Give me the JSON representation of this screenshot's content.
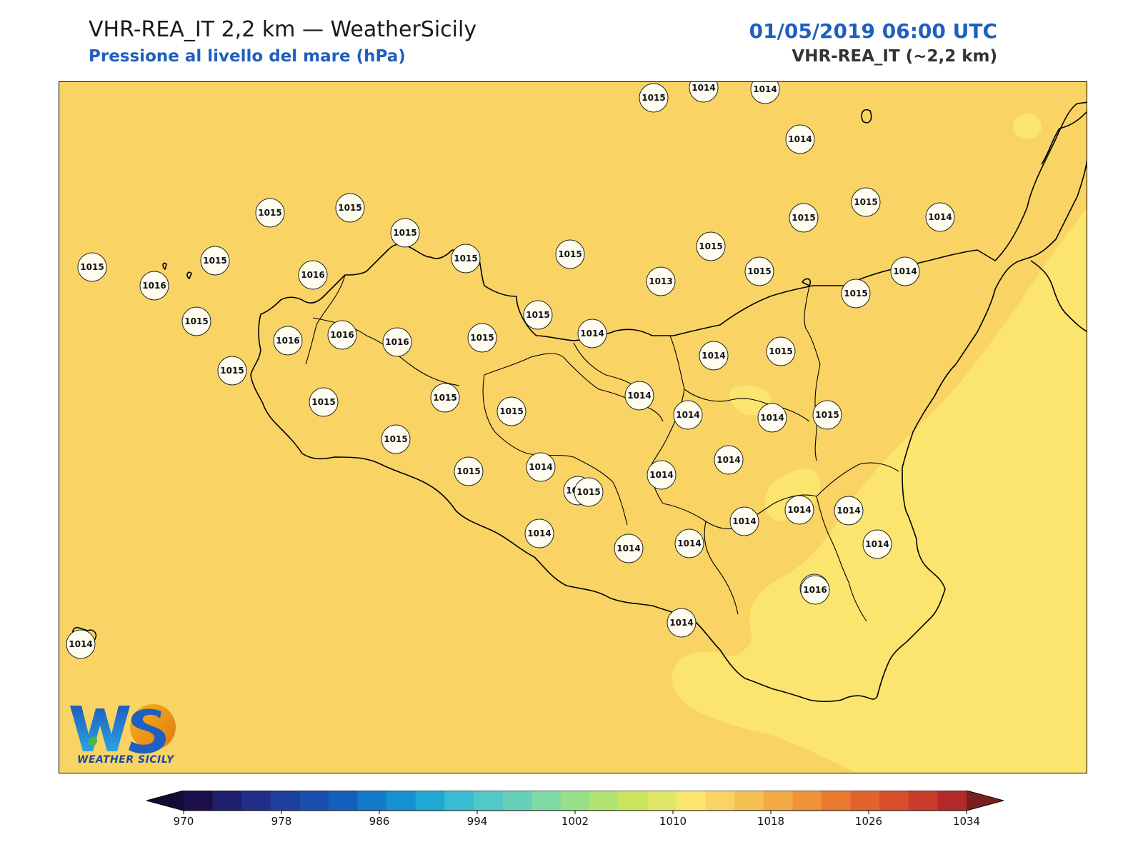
{
  "header": {
    "title": "VHR-REA_IT 2,2 km — WeatherSicily",
    "subtitle": "Pressione al livello del mare (hPa)",
    "datetime": "01/05/2019 06:00 UTC",
    "model": "VHR-REA_IT (~2,2 km)"
  },
  "logo": {
    "text": "WEATHER SICILY",
    "lettering": "WS"
  },
  "colors": {
    "field_base": "#f9d464",
    "field_light": "#fbe56e",
    "coast": "#000000",
    "marker_fill": "#fffdf0",
    "title_blue": "#1f5fbf"
  },
  "colorbar": {
    "min": 970,
    "max": 1034,
    "step": 4,
    "ticks": [
      "970",
      "978",
      "986",
      "994",
      "1002",
      "1010",
      "1018",
      "1026",
      "1034"
    ],
    "colors": [
      "#1c0f4a",
      "#1f1f6e",
      "#222f8a",
      "#1e3f9e",
      "#1a4faf",
      "#1660bd",
      "#127ac8",
      "#1591d0",
      "#22a8d4",
      "#39bcd2",
      "#52c8c8",
      "#66d1b8",
      "#7fd9a4",
      "#98df8c",
      "#b2e472",
      "#cbe65e",
      "#e0e768",
      "#fbe56e",
      "#f9d464",
      "#f5c052",
      "#f2aa45",
      "#ef9238",
      "#ea7a30",
      "#e3632c",
      "#d84f2b",
      "#c93c2c",
      "#b42a2a"
    ],
    "under_color": "#150a33",
    "over_color": "#7a1f1f"
  },
  "pressure_labels": [
    {
      "value": "1015"
    },
    {
      "value": "1014"
    },
    {
      "value": "1014"
    },
    {
      "value": "1014"
    },
    {
      "value": "1015"
    },
    {
      "value": "1015"
    },
    {
      "value": "1015"
    },
    {
      "value": "1015"
    },
    {
      "value": "1015"
    },
    {
      "value": "1014"
    },
    {
      "value": "1015"
    },
    {
      "value": "1015"
    },
    {
      "value": "1015"
    },
    {
      "value": "1015"
    },
    {
      "value": "1016"
    },
    {
      "value": "1015"
    },
    {
      "value": "1016"
    },
    {
      "value": "1013"
    },
    {
      "value": "1015"
    },
    {
      "value": "1014"
    },
    {
      "value": "1015"
    },
    {
      "value": "1015"
    },
    {
      "value": "1016"
    },
    {
      "value": "1016"
    },
    {
      "value": "1016"
    },
    {
      "value": "1015"
    },
    {
      "value": "1015"
    },
    {
      "value": "1014"
    },
    {
      "value": "1014"
    },
    {
      "value": "1015"
    },
    {
      "value": "1015"
    },
    {
      "value": "1015"
    },
    {
      "value": "1015"
    },
    {
      "value": "1015"
    },
    {
      "value": "1014"
    },
    {
      "value": "1014"
    },
    {
      "value": "1014"
    },
    {
      "value": "1015"
    },
    {
      "value": "1015"
    },
    {
      "value": "1015"
    },
    {
      "value": "1014"
    },
    {
      "value": "1014"
    },
    {
      "value": "1015"
    },
    {
      "value": "1014"
    },
    {
      "value": "1014"
    },
    {
      "value": "1014"
    },
    {
      "value": "1014"
    },
    {
      "value": "1014"
    },
    {
      "value": "1014"
    },
    {
      "value": "1014"
    },
    {
      "value": "1014"
    },
    {
      "value": "1014"
    },
    {
      "value": "1014"
    },
    {
      "value": "1016"
    },
    {
      "value": "1014"
    },
    {
      "value": "1014"
    }
  ]
}
